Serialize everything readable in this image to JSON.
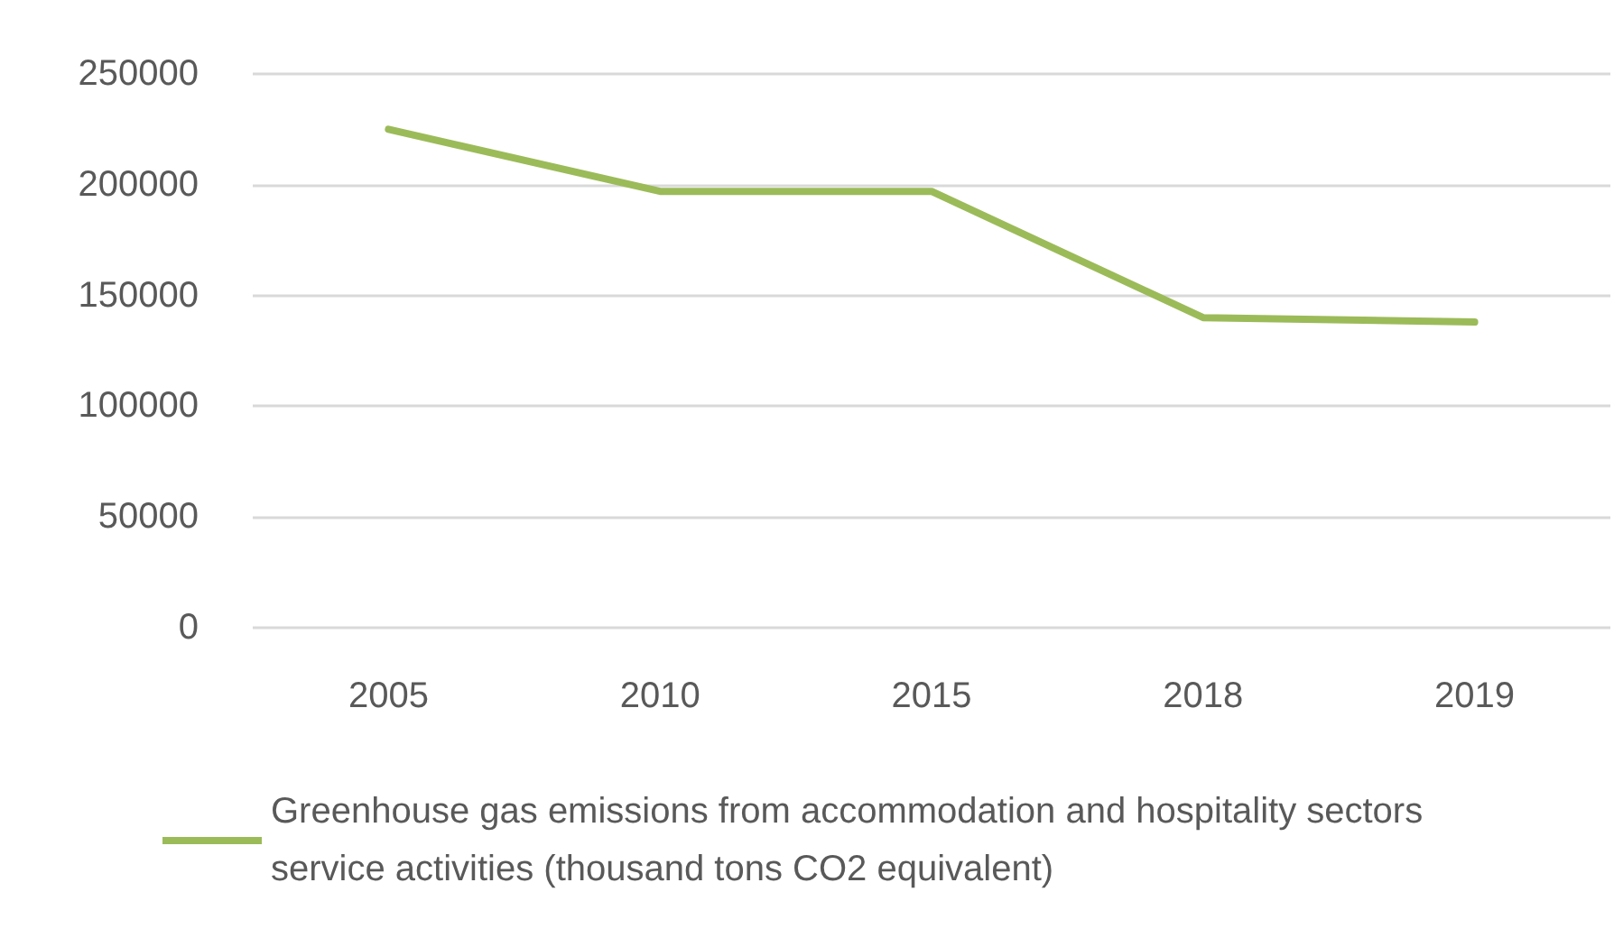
{
  "chart_data": {
    "type": "line",
    "categories": [
      "2005",
      "2010",
      "2015",
      "2018",
      "2019"
    ],
    "series": [
      {
        "name": "Greenhouse gas emissions from accommodation and hospitality sectors service activities (thousand tons CO2 equivalent)",
        "color": "#9bbb59",
        "values": [
          225000,
          197000,
          197000,
          140000,
          138000
        ]
      }
    ],
    "ylim": [
      0,
      250000
    ],
    "yticks": [
      0,
      50000,
      100000,
      150000,
      200000,
      250000
    ],
    "grid": "y",
    "legend": "bottom",
    "marker": "none",
    "line_style": "solid"
  }
}
